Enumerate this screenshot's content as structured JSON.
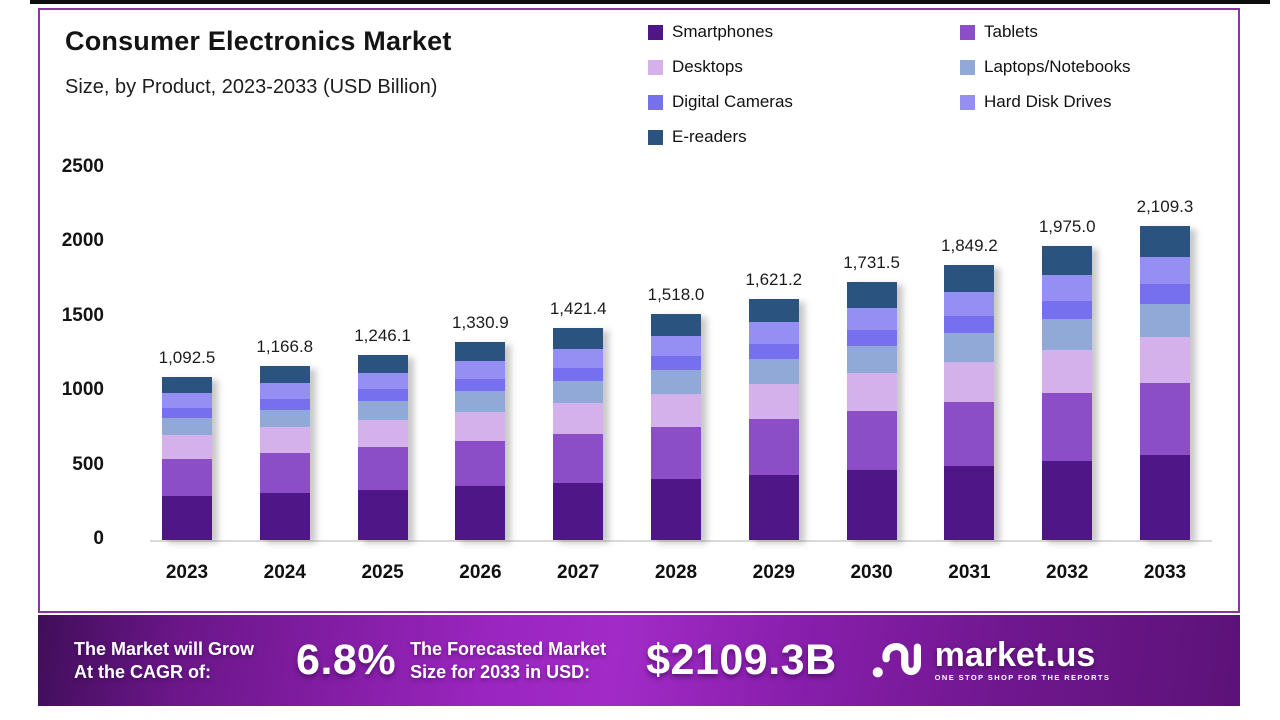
{
  "frame": {
    "top_bar_color": "#0e0e0e",
    "card_border_color": "#8a34a8",
    "background_color": "#ffffff"
  },
  "header": {
    "title": "Consumer Electronics Market",
    "subtitle": "Size, by Product, 2023-2033 (USD Billion)"
  },
  "chart_data": {
    "type": "bar",
    "stacked": true,
    "title": "Consumer Electronics Market Size, by Product, 2023-2033 (USD Billion)",
    "xlabel": "",
    "ylabel": "USD Billion",
    "ylim": [
      0,
      2500
    ],
    "yticks": [
      0,
      500,
      1000,
      1500,
      2000,
      2500
    ],
    "grid": false,
    "legend_position": "top-right",
    "categories": [
      "2023",
      "2024",
      "2025",
      "2026",
      "2027",
      "2028",
      "2029",
      "2030",
      "2031",
      "2032",
      "2033"
    ],
    "totals": [
      1092.5,
      1166.8,
      1246.1,
      1330.9,
      1421.4,
      1518.0,
      1621.2,
      1731.5,
      1849.2,
      1975.0,
      2109.3
    ],
    "total_labels": [
      "1,092.5",
      "1,166.8",
      "1,246.1",
      "1,330.9",
      "1,421.4",
      "1,518.0",
      "1,621.2",
      "1,731.5",
      "1,849.2",
      "1,975.0",
      "2,109.3"
    ],
    "cagr": "6.8%",
    "series_values_estimated": true,
    "series": [
      {
        "name": "Smartphones",
        "color": "#4f1688",
        "values": [
          295.0,
          315.0,
          336.4,
          359.3,
          383.8,
          409.9,
          437.7,
          467.5,
          499.3,
          533.3,
          569.5
        ]
      },
      {
        "name": "Tablets",
        "color": "#8c4ec6",
        "values": [
          251.3,
          268.4,
          286.6,
          306.1,
          326.9,
          349.1,
          372.9,
          398.2,
          425.3,
          454.3,
          485.1
        ]
      },
      {
        "name": "Desktops",
        "color": "#d5b1ec",
        "values": [
          161.7,
          172.7,
          184.4,
          197.0,
          210.4,
          224.7,
          239.9,
          256.3,
          273.7,
          292.3,
          312.2
        ]
      },
      {
        "name": "Laptops/Notebooks",
        "color": "#91a9d7",
        "values": [
          112.5,
          120.2,
          128.3,
          137.1,
          146.4,
          156.4,
          167.0,
          178.3,
          190.5,
          203.4,
          217.3
        ]
      },
      {
        "name": "Digital Cameras",
        "color": "#7770ee",
        "values": [
          68.8,
          73.5,
          78.5,
          83.8,
          89.5,
          95.6,
          102.1,
          109.1,
          116.5,
          124.4,
          132.9
        ]
      },
      {
        "name": "Hard Disk Drives",
        "color": "#958ff4",
        "values": [
          96.1,
          102.7,
          109.7,
          117.1,
          125.1,
          133.6,
          142.7,
          152.4,
          162.7,
          173.8,
          185.6
        ]
      },
      {
        "name": "E-readers",
        "color": "#2a537f",
        "values": [
          107.1,
          114.3,
          122.1,
          130.4,
          139.3,
          148.8,
          158.9,
          169.7,
          181.2,
          193.6,
          206.7
        ]
      }
    ]
  },
  "legend": {
    "items": [
      {
        "label": "Smartphones",
        "color": "#4f1688"
      },
      {
        "label": "Tablets",
        "color": "#8c4ec6"
      },
      {
        "label": "Desktops",
        "color": "#d5b1ec"
      },
      {
        "label": "Laptops/Notebooks",
        "color": "#91a9d7"
      },
      {
        "label": "Digital Cameras",
        "color": "#7770ee"
      },
      {
        "label": "Hard Disk Drives",
        "color": "#958ff4"
      },
      {
        "label": "E-readers",
        "color": "#2a537f"
      }
    ]
  },
  "footer": {
    "cagr": {
      "line1": "The Market will Grow",
      "line2": "At the CAGR of:",
      "value": "6.8%"
    },
    "forecast": {
      "line1": "The Forecasted Market",
      "line2": "Size for 2033 in USD:",
      "value": "$2109.3B"
    },
    "brand": {
      "name": "market.us",
      "tagline": "ONE STOP SHOP FOR THE REPORTS"
    }
  }
}
